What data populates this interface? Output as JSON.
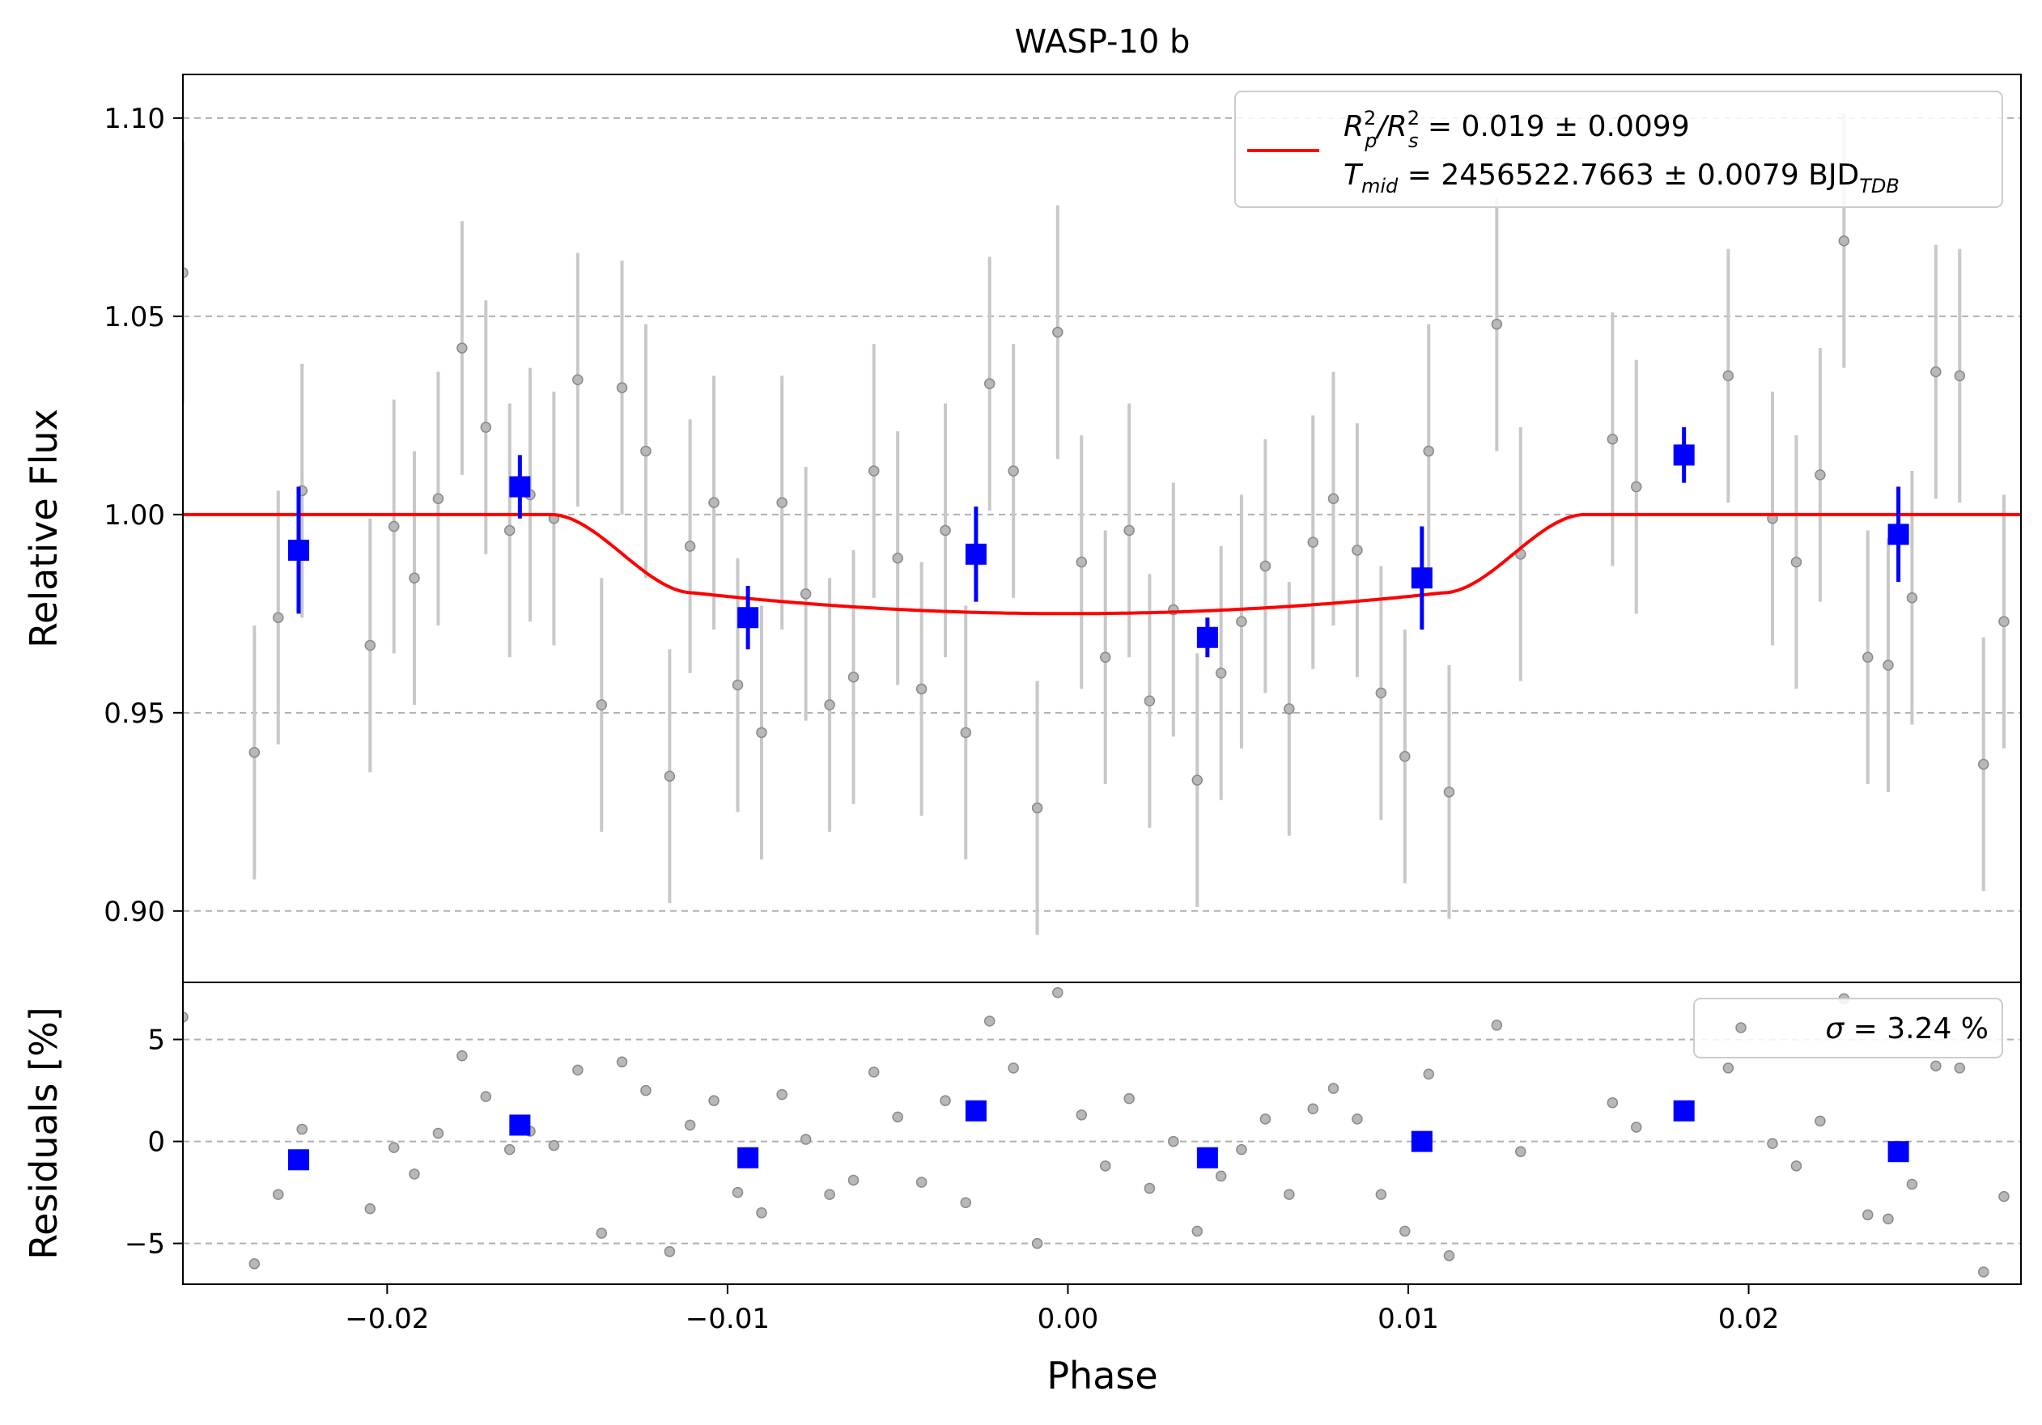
{
  "chart_data": [
    {
      "type": "scatter",
      "title": "WASP-10 b",
      "ylabel": "Relative Flux",
      "xlim": [
        -0.026,
        0.028
      ],
      "ylim": [
        0.882,
        1.111
      ],
      "grid": "y-dashed",
      "yticks": [
        0.9,
        0.95,
        1.0,
        1.05,
        1.1
      ],
      "ytick_labels": [
        "0.90",
        "0.95",
        "1.00",
        "1.05",
        "1.10"
      ],
      "legend": {
        "placement": "upper-right",
        "line1": {
          "sym": "R",
          "sup1": "2",
          "sub1": "p",
          "mid": "/R",
          "sup2": "2",
          "sub2": "s",
          "text": " = 0.019 ± 0.0099"
        },
        "line2": {
          "sym": "T",
          "sub1": "mid",
          "text": " = 2456522.7663 ± 0.0079 BJD",
          "sub2": "TDB"
        }
      },
      "colors": {
        "raw": "#808080",
        "raw_err": "#c8c8c8",
        "binned": "#0000ff",
        "model": "#ff0000",
        "grid": "#b0b0b0"
      },
      "model": {
        "baseline": 1.0,
        "depth": 0.025,
        "t1": -0.0152,
        "t2": -0.011,
        "t3": 0.011,
        "t4": 0.0152,
        "limb_factor": 0.6
      },
      "raw": {
        "x": [
          -0.026,
          -0.0239,
          -0.0232,
          -0.0225,
          -0.0205,
          -0.0198,
          -0.0192,
          -0.0185,
          -0.0178,
          -0.0171,
          -0.0164,
          -0.0158,
          -0.0151,
          -0.0144,
          -0.0137,
          -0.0131,
          -0.0124,
          -0.0117,
          -0.0111,
          -0.0104,
          -0.0097,
          -0.009,
          -0.0084,
          -0.0077,
          -0.007,
          -0.0063,
          -0.0057,
          -0.005,
          -0.0043,
          -0.0036,
          -0.003,
          -0.0023,
          -0.0016,
          -0.0009,
          -0.0003,
          0.0004,
          0.0011,
          0.0018,
          0.0024,
          0.0031,
          0.0038,
          0.0045,
          0.0051,
          0.0058,
          0.0065,
          0.0072,
          0.0078,
          0.0085,
          0.0092,
          0.0099,
          0.0106,
          0.0112,
          0.0126,
          0.0133,
          0.016,
          0.0167,
          0.0194,
          0.0207,
          0.0214,
          0.0221,
          0.0228,
          0.0235,
          0.0241,
          0.0248,
          0.0255,
          0.0262,
          0.0269,
          0.0275,
          0.0282
        ],
        "y": [
          1.061,
          0.94,
          0.974,
          1.006,
          0.967,
          0.997,
          0.984,
          1.004,
          1.042,
          1.022,
          0.996,
          1.005,
          0.999,
          1.034,
          0.952,
          1.032,
          1.016,
          0.934,
          0.992,
          1.003,
          0.957,
          0.945,
          1.003,
          0.98,
          0.952,
          0.959,
          1.011,
          0.989,
          0.956,
          0.996,
          0.945,
          1.033,
          1.011,
          0.926,
          1.046,
          0.988,
          0.964,
          0.996,
          0.953,
          0.976,
          0.933,
          0.96,
          0.973,
          0.987,
          0.951,
          0.993,
          1.004,
          0.991,
          0.955,
          0.939,
          1.016,
          0.93,
          1.048,
          0.99,
          1.019,
          1.007,
          1.035,
          0.999,
          0.988,
          1.01,
          1.069,
          0.964,
          0.962,
          0.979,
          1.036,
          1.035,
          0.937,
          0.973,
          0.991
        ],
        "err": [
          0.033,
          0.032,
          0.032,
          0.032,
          0.032,
          0.032,
          0.032,
          0.032,
          0.032,
          0.032,
          0.032,
          0.032,
          0.032,
          0.032,
          0.032,
          0.032,
          0.032,
          0.032,
          0.032,
          0.032,
          0.032,
          0.032,
          0.032,
          0.032,
          0.032,
          0.032,
          0.032,
          0.032,
          0.032,
          0.032,
          0.032,
          0.032,
          0.032,
          0.032,
          0.032,
          0.032,
          0.032,
          0.032,
          0.032,
          0.032,
          0.032,
          0.032,
          0.032,
          0.032,
          0.032,
          0.032,
          0.032,
          0.032,
          0.032,
          0.032,
          0.032,
          0.032,
          0.032,
          0.032,
          0.032,
          0.032,
          0.032,
          0.032,
          0.032,
          0.032,
          0.032,
          0.032,
          0.032,
          0.032,
          0.032,
          0.032,
          0.032,
          0.032,
          0.032
        ]
      },
      "binned": {
        "x": [
          -0.0226,
          -0.0161,
          -0.0094,
          -0.0027,
          0.0041,
          0.0104,
          0.0181,
          0.0244
        ],
        "y": [
          0.991,
          1.007,
          0.974,
          0.99,
          0.969,
          0.984,
          1.015,
          0.995
        ],
        "err": [
          0.016,
          0.008,
          0.008,
          0.012,
          0.005,
          0.013,
          0.007,
          0.012
        ]
      }
    },
    {
      "type": "scatter",
      "xlabel": "Phase",
      "ylabel": "Residuals [%]",
      "xlim": [
        -0.026,
        0.028
      ],
      "ylim": [
        -7.0,
        7.8
      ],
      "grid": "y-dashed",
      "xticks": [
        -0.02,
        -0.01,
        0.0,
        0.01,
        0.02
      ],
      "xtick_labels": [
        "−0.02",
        "−0.01",
        "0.00",
        "0.01",
        "0.02"
      ],
      "yticks": [
        -5,
        0,
        5
      ],
      "ytick_labels": [
        "−5",
        "0",
        "5"
      ],
      "legend": {
        "placement": "upper-right",
        "text": " = 3.24 %",
        "sym": "σ"
      },
      "raw": {
        "x": [
          -0.026,
          -0.0239,
          -0.0232,
          -0.0225,
          -0.0205,
          -0.0198,
          -0.0192,
          -0.0185,
          -0.0178,
          -0.0171,
          -0.0164,
          -0.0158,
          -0.0151,
          -0.0144,
          -0.0137,
          -0.0131,
          -0.0124,
          -0.0117,
          -0.0111,
          -0.0104,
          -0.0097,
          -0.009,
          -0.0084,
          -0.0077,
          -0.007,
          -0.0063,
          -0.0057,
          -0.005,
          -0.0043,
          -0.0036,
          -0.003,
          -0.0023,
          -0.0016,
          -0.0009,
          -0.0003,
          0.0004,
          0.0011,
          0.0018,
          0.0024,
          0.0031,
          0.0038,
          0.0045,
          0.0051,
          0.0058,
          0.0065,
          0.0072,
          0.0078,
          0.0085,
          0.0092,
          0.0099,
          0.0106,
          0.0112,
          0.0126,
          0.0133,
          0.016,
          0.0167,
          0.0194,
          0.0207,
          0.0214,
          0.0221,
          0.0228,
          0.0235,
          0.0241,
          0.0248,
          0.0255,
          0.0262,
          0.0269,
          0.0275,
          0.0282
        ],
        "y": [
          6.1,
          -6.0,
          -2.6,
          0.6,
          -3.3,
          -0.3,
          -1.6,
          0.4,
          4.2,
          2.2,
          -0.4,
          0.5,
          -0.2,
          3.5,
          -4.5,
          3.9,
          2.5,
          -5.4,
          0.8,
          2.0,
          -2.5,
          -3.5,
          2.3,
          0.1,
          -2.6,
          -1.9,
          3.4,
          1.2,
          -2.0,
          2.0,
          -3.0,
          5.9,
          3.6,
          -5.0,
          7.3,
          1.3,
          -1.2,
          2.1,
          -2.3,
          0.0,
          -4.4,
          -1.7,
          -0.4,
          1.1,
          -2.6,
          1.6,
          2.6,
          1.1,
          -2.6,
          -4.4,
          3.3,
          -5.6,
          5.7,
          -0.5,
          1.9,
          0.7,
          3.6,
          -0.1,
          -1.2,
          1.0,
          7.0,
          -3.6,
          -3.8,
          -2.1,
          3.7,
          3.6,
          -6.4,
          -2.7,
          -0.9
        ]
      },
      "binned": {
        "x": [
          -0.0226,
          -0.0161,
          -0.0094,
          -0.0027,
          0.0041,
          0.0104,
          0.0181,
          0.0244
        ],
        "y": [
          -0.9,
          0.8,
          -0.8,
          1.5,
          -0.8,
          0.0,
          1.5,
          -0.5
        ]
      }
    }
  ]
}
